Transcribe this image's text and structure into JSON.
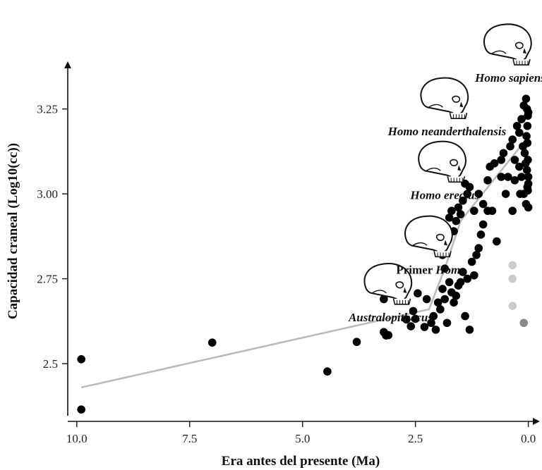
{
  "chart_data": {
    "type": "scatter",
    "xlabel": "Era antes del presente (Ma)",
    "ylabel": "Capacidad craneal (Log10(cc))",
    "x_reversed": true,
    "xlim": [
      10.2,
      -0.1
    ],
    "ylim": [
      2.33,
      3.38
    ],
    "x_ticks": [
      {
        "value": 10.0,
        "label": "10.0"
      },
      {
        "value": 7.5,
        "label": "7.5"
      },
      {
        "value": 5.0,
        "label": "5.0"
      },
      {
        "value": 2.5,
        "label": "2.5"
      },
      {
        "value": 0.0,
        "label": "0.0"
      }
    ],
    "y_ticks": [
      {
        "value": 2.5,
        "label": "2.5"
      },
      {
        "value": 2.75,
        "label": "2.75"
      },
      {
        "value": 3.0,
        "label": "3.00"
      },
      {
        "value": 3.25,
        "label": "3.25"
      }
    ],
    "grid": false,
    "series": [
      {
        "color": "#000000",
        "points": [
          [
            9.9,
            2.513
          ],
          [
            9.9,
            2.365
          ],
          [
            7.0,
            2.562
          ],
          [
            4.45,
            2.477
          ],
          [
            3.8,
            2.564
          ],
          [
            3.2,
            2.593
          ],
          [
            3.15,
            2.583
          ],
          [
            3.1,
            2.584
          ],
          [
            3.2,
            2.69
          ],
          [
            3.05,
            2.72
          ],
          [
            2.75,
            2.745
          ],
          [
            2.7,
            2.63
          ],
          [
            2.6,
            2.61
          ],
          [
            2.55,
            2.655
          ],
          [
            2.5,
            2.632
          ],
          [
            2.45,
            2.707
          ],
          [
            2.3,
            2.608
          ],
          [
            2.25,
            2.69
          ],
          [
            2.15,
            2.62
          ],
          [
            2.1,
            2.64
          ],
          [
            2.05,
            2.6
          ],
          [
            2.0,
            2.68
          ],
          [
            1.95,
            2.66
          ],
          [
            1.9,
            2.72
          ],
          [
            1.85,
            2.69
          ],
          [
            1.8,
            2.62
          ],
          [
            1.75,
            2.74
          ],
          [
            1.7,
            2.71
          ],
          [
            1.65,
            2.68
          ],
          [
            1.6,
            2.7
          ],
          [
            1.55,
            2.73
          ],
          [
            1.5,
            2.74
          ],
          [
            1.45,
            2.77
          ],
          [
            1.4,
            2.64
          ],
          [
            1.35,
            2.75
          ],
          [
            1.3,
            2.6
          ],
          [
            1.25,
            2.8
          ],
          [
            1.2,
            2.76
          ],
          [
            1.15,
            2.82
          ],
          [
            1.1,
            2.84
          ],
          [
            1.05,
            2.88
          ],
          [
            1.0,
            2.91
          ],
          [
            1.9,
            2.82
          ],
          [
            1.85,
            2.78
          ],
          [
            1.8,
            2.9
          ],
          [
            1.75,
            2.93
          ],
          [
            1.7,
            2.95
          ],
          [
            1.65,
            2.89
          ],
          [
            1.6,
            2.92
          ],
          [
            1.55,
            2.96
          ],
          [
            1.5,
            2.94
          ],
          [
            1.45,
            2.98
          ],
          [
            1.4,
            3.03
          ],
          [
            1.35,
            3.0
          ],
          [
            1.3,
            3.02
          ],
          [
            1.2,
            2.95
          ],
          [
            1.1,
            3.0
          ],
          [
            1.0,
            2.97
          ],
          [
            0.9,
            2.95
          ],
          [
            0.8,
            2.95
          ],
          [
            0.75,
            3.09
          ],
          [
            0.7,
            2.86
          ],
          [
            0.9,
            3.04
          ],
          [
            0.85,
            3.08
          ],
          [
            0.6,
            3.1
          ],
          [
            0.55,
            3.12
          ],
          [
            0.5,
            3.0
          ],
          [
            0.45,
            3.05
          ],
          [
            0.4,
            3.14
          ],
          [
            0.35,
            2.95
          ],
          [
            0.3,
            3.1
          ],
          [
            0.25,
            3.2
          ],
          [
            0.2,
            3.18
          ],
          [
            0.15,
            3.22
          ],
          [
            0.1,
            3.26
          ],
          [
            0.05,
            3.28
          ],
          [
            0.03,
            3.25
          ],
          [
            0.02,
            3.15
          ],
          [
            0.01,
            3.1
          ],
          [
            0.0,
            3.05
          ],
          [
            0.1,
            3.0
          ],
          [
            0.05,
            2.97
          ],
          [
            0.02,
            3.02
          ],
          [
            0.0,
            2.96
          ],
          [
            0.08,
            3.12
          ],
          [
            0.04,
            3.17
          ],
          [
            0.02,
            3.2
          ],
          [
            0.01,
            3.23
          ],
          [
            0.0,
            3.24
          ],
          [
            0.06,
            3.09
          ],
          [
            0.03,
            3.07
          ],
          [
            0.01,
            3.01
          ],
          [
            0.0,
            3.03
          ],
          [
            0.12,
            3.14
          ],
          [
            0.15,
            3.05
          ],
          [
            0.18,
            3.0
          ],
          [
            0.2,
            3.08
          ],
          [
            0.3,
            3.04
          ],
          [
            0.6,
            3.05
          ],
          [
            0.35,
            3.16
          ]
        ]
      },
      {
        "color": "#cccccc",
        "points": [
          [
            0.35,
            2.79
          ],
          [
            0.35,
            2.75
          ],
          [
            0.35,
            2.67
          ]
        ]
      },
      {
        "color": "#888888",
        "points": [
          [
            0.1,
            2.62
          ]
        ]
      }
    ],
    "trend_line": {
      "color": "#bbbbbb",
      "points": [
        [
          9.9,
          2.43
        ],
        [
          2.2,
          2.66
        ],
        [
          1.85,
          2.78
        ],
        [
          1.5,
          2.92
        ],
        [
          0.05,
          3.16
        ],
        [
          0.05,
          3.12
        ]
      ]
    },
    "annotations": [
      {
        "icon": "skull-australopithecus-icon",
        "label": "Australopithecus",
        "italic": true,
        "x": 3.05,
        "y": 2.625
      },
      {
        "icon": "skull-early-homo-icon",
        "label_plain": "Primer ",
        "label_italic": "Homo",
        "x": 2.15,
        "y": 2.765
      },
      {
        "icon": "skull-homo-erectus-icon",
        "label": "Homo erectus",
        "italic": true,
        "x": 1.85,
        "y": 2.985
      },
      {
        "icon": "skull-neanderthal-icon",
        "label": "Homo neanderthalensis",
        "italic": true,
        "x": 1.8,
        "y": 3.172
      },
      {
        "icon": "skull-homo-sapiens-icon",
        "label": "Homo sapiens",
        "italic": true,
        "x": 0.4,
        "y": 3.33
      }
    ]
  }
}
